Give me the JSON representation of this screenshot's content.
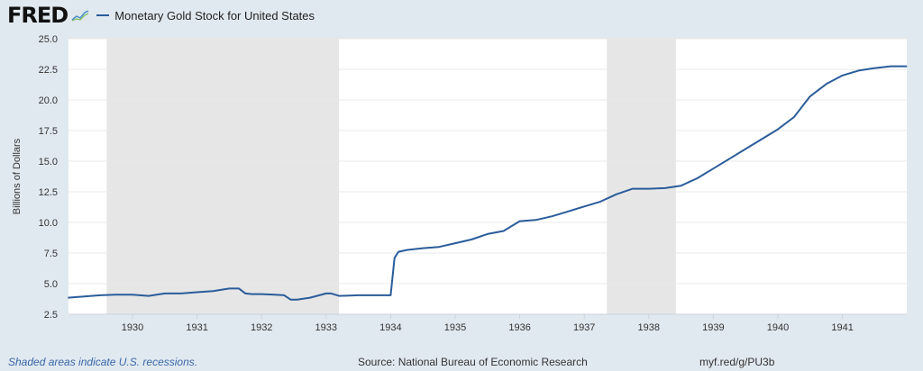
{
  "header": {
    "logo": "FRED",
    "logo_icon": "trend-chart-icon",
    "legend": "Monetary Gold Stock for United States",
    "line_color": "#2a5c9a"
  },
  "footer": {
    "note": "Shaded areas indicate U.S. recessions.",
    "source": "Source: National Bureau of Economic Research",
    "link": "myf.red/g/PU3b"
  },
  "chart_data": {
    "type": "line",
    "title": "Monetary Gold Stock for United States",
    "xlabel": "",
    "ylabel": "Billions of Dollars",
    "ylim": [
      2.5,
      25.0
    ],
    "yticks": [
      "2.5",
      "5.0",
      "7.5",
      "10.0",
      "12.5",
      "15.0",
      "17.5",
      "20.0",
      "22.5",
      "25.0"
    ],
    "xticks": [
      "1930",
      "1931",
      "1932",
      "1933",
      "1934",
      "1935",
      "1936",
      "1937",
      "1938",
      "1939",
      "1940",
      "1941"
    ],
    "xlim": [
      1929.0,
      1942.0
    ],
    "grid": true,
    "legend_position": "top-left",
    "recessions": [
      [
        1929.6,
        1933.2
      ],
      [
        1937.35,
        1938.42
      ]
    ],
    "series": [
      {
        "name": "Monetary Gold Stock for United States",
        "color": "#2a5c9a",
        "x": [
          1929.0,
          1929.25,
          1929.5,
          1929.75,
          1930.0,
          1930.25,
          1930.5,
          1930.75,
          1931.0,
          1931.25,
          1931.5,
          1931.65,
          1931.75,
          1931.85,
          1932.0,
          1932.2,
          1932.35,
          1932.45,
          1932.55,
          1932.75,
          1933.0,
          1933.08,
          1933.2,
          1933.5,
          1934.0,
          1934.06,
          1934.12,
          1934.25,
          1934.5,
          1934.75,
          1935.0,
          1935.25,
          1935.5,
          1935.75,
          1936.0,
          1936.25,
          1936.5,
          1936.75,
          1937.0,
          1937.25,
          1937.5,
          1937.75,
          1938.0,
          1938.25,
          1938.5,
          1938.75,
          1939.0,
          1939.25,
          1939.5,
          1939.75,
          1940.0,
          1940.25,
          1940.5,
          1940.75,
          1941.0,
          1941.25,
          1941.5,
          1941.75,
          1942.0
        ],
        "values": [
          3.85,
          3.95,
          4.05,
          4.1,
          4.1,
          4.0,
          4.2,
          4.2,
          4.3,
          4.4,
          4.6,
          4.6,
          4.2,
          4.15,
          4.15,
          4.1,
          4.05,
          3.7,
          3.7,
          3.85,
          4.2,
          4.2,
          4.0,
          4.05,
          4.05,
          7.1,
          7.6,
          7.75,
          7.9,
          8.0,
          8.3,
          8.6,
          9.05,
          9.3,
          10.1,
          10.2,
          10.5,
          10.9,
          11.3,
          11.7,
          12.3,
          12.75,
          12.75,
          12.8,
          13.0,
          13.6,
          14.4,
          15.2,
          16.0,
          16.8,
          17.6,
          18.6,
          20.3,
          21.3,
          22.0,
          22.4,
          22.6,
          22.75,
          22.75
        ]
      }
    ]
  }
}
